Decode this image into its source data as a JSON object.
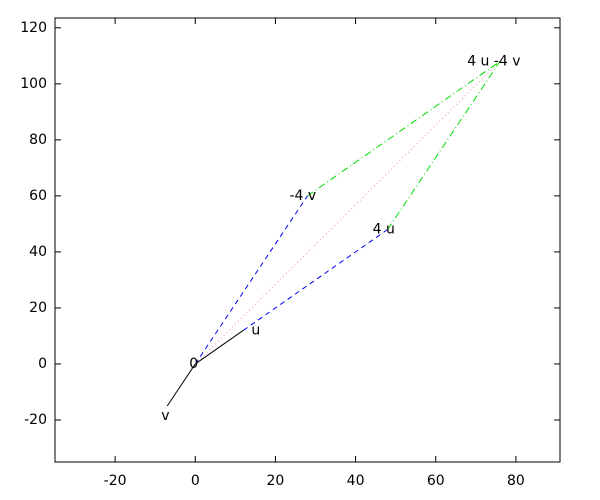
{
  "chart_data": {
    "type": "vector",
    "xlim": [
      -35,
      91
    ],
    "ylim": [
      -35,
      123.5
    ],
    "xticks": [
      -20,
      0,
      20,
      40,
      60,
      80
    ],
    "yticks": [
      -20,
      0,
      20,
      40,
      60,
      80,
      100,
      120
    ],
    "grid": false,
    "points": [
      {
        "label": "0",
        "x": 0,
        "y": 0
      },
      {
        "label": "u",
        "x": 12,
        "y": 12
      },
      {
        "label": "v",
        "x": -7,
        "y": -15
      },
      {
        "label": "4 u",
        "x": 48,
        "y": 48
      },
      {
        "label": "-4 v",
        "x": 28,
        "y": 60
      },
      {
        "label": "4 u -4 v",
        "x": 76,
        "y": 108
      }
    ],
    "segments": [
      {
        "x0": 0,
        "y0": 0,
        "x1": 12,
        "y1": 12,
        "color": "#000000",
        "style": "solid"
      },
      {
        "x0": 0,
        "y0": 0,
        "x1": -7,
        "y1": -15,
        "color": "#000000",
        "style": "solid"
      },
      {
        "x0": 0,
        "y0": 0,
        "x1": 28,
        "y1": 60,
        "color": "#0000ff",
        "style": "dashed"
      },
      {
        "x0": 12,
        "y0": 12,
        "x1": 48,
        "y1": 48,
        "color": "#0000ff",
        "style": "dashed"
      },
      {
        "x0": 28,
        "y0": 60,
        "x1": 76,
        "y1": 108,
        "color": "#00dd00",
        "style": "dashdot"
      },
      {
        "x0": 48,
        "y0": 48,
        "x1": 76,
        "y1": 108,
        "color": "#00dd00",
        "style": "dashdot"
      },
      {
        "x0": 0,
        "y0": 0,
        "x1": 76,
        "y1": 108,
        "color": "#ff9090",
        "style": "dotted"
      }
    ]
  }
}
